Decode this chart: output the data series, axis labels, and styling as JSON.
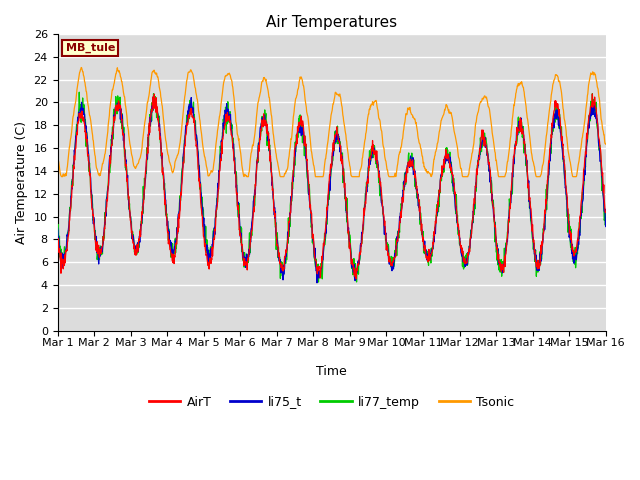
{
  "title": "Air Temperatures",
  "xlabel": "Time",
  "ylabel": "Air Temperature (C)",
  "ylim": [
    0,
    26
  ],
  "site_label": "MB_tule",
  "legend": [
    "AirT",
    "li75_t",
    "li77_temp",
    "Tsonic"
  ],
  "line_colors": [
    "#ff0000",
    "#0000cc",
    "#00cc00",
    "#ff9900"
  ],
  "background_color": "#dcdcdc",
  "x_ticks": [
    "Mar 1",
    "Mar 2",
    "Mar 3",
    "Mar 4",
    "Mar 5",
    "Mar 6",
    "Mar 7",
    "Mar 8",
    "Mar 9",
    "Mar 10",
    "Mar 11",
    "Mar 12",
    "Mar 13",
    "Mar 14",
    "Mar 15",
    "Mar 16"
  ],
  "n_days": 15,
  "figsize": [
    6.4,
    4.8
  ],
  "dpi": 100
}
